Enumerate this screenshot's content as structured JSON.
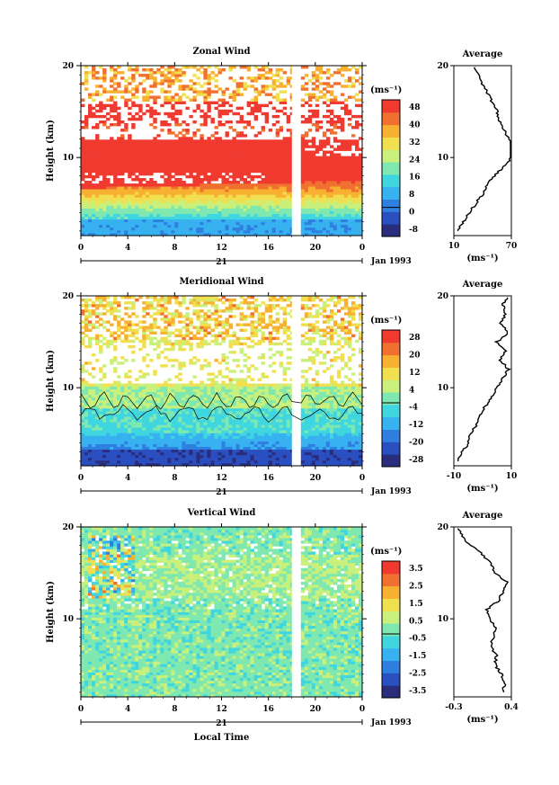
{
  "panels": [
    {
      "title": "Zonal Wind",
      "ylabel": "Height (km)",
      "yticks": [
        "20",
        "10"
      ],
      "xticks": [
        "0",
        "4",
        "8",
        "12",
        "16",
        "20",
        "0"
      ],
      "day_label": "21",
      "month_label": "Jan 1993",
      "unit_label": "(ms⁻¹)",
      "colorbar_labels": [
        "48",
        "40",
        "32",
        "24",
        "16",
        "8",
        "0",
        "-8"
      ],
      "avg_title": "Average",
      "avg_yticks": [
        "20",
        "10"
      ],
      "avg_xticks": [
        "10",
        "70"
      ],
      "avg_xunit": "(ms⁻¹)"
    },
    {
      "title": "Meridional Wind",
      "ylabel": "Height (km)",
      "yticks": [
        "20",
        "10"
      ],
      "xticks": [
        "0",
        "4",
        "8",
        "12",
        "16",
        "20",
        "0"
      ],
      "day_label": "21",
      "month_label": "Jan 1993",
      "unit_label": "(ms⁻¹)",
      "colorbar_labels": [
        "28",
        "20",
        "12",
        "4",
        "-4",
        "-12",
        "-20",
        "-28"
      ],
      "avg_title": "Average",
      "avg_yticks": [
        "20",
        "10"
      ],
      "avg_xticks": [
        "-10",
        "10"
      ],
      "avg_xunit": "(ms⁻¹)"
    },
    {
      "title": "Vertical Wind",
      "ylabel": "Height (km)",
      "yticks": [
        "20",
        "10"
      ],
      "xticks": [
        "0",
        "4",
        "8",
        "12",
        "16",
        "20",
        "0"
      ],
      "day_label": "21",
      "month_label": "Jan 1993",
      "unit_label": "(ms⁻¹)",
      "colorbar_labels": [
        "3.5",
        "2.5",
        "1.5",
        "0.5",
        "-0.5",
        "-1.5",
        "-2.5",
        "-3.5"
      ],
      "avg_title": "Average",
      "avg_yticks": [
        "20",
        "10"
      ],
      "avg_xticks": [
        "-0.3",
        "0.4"
      ],
      "avg_xunit": "(ms⁻¹)"
    }
  ],
  "xlabel": "Local Time",
  "colors": {
    "scale": [
      "#2a2d7c",
      "#2a4fc0",
      "#2f7fe0",
      "#37b1f0",
      "#3fd6e0",
      "#7fe8b0",
      "#c8f07a",
      "#f0e050",
      "#f8b030",
      "#f07030",
      "#f03a30"
    ]
  },
  "chart_data": [
    {
      "type": "heatmap",
      "title": "Zonal Wind",
      "xlabel": "Local Time",
      "ylabel": "Height (km)",
      "xlim": [
        0,
        24
      ],
      "ylim": [
        1.5,
        20
      ],
      "colorbar": [
        -8,
        0,
        8,
        16,
        24,
        32,
        40,
        48
      ],
      "average_profile": {
        "xlim": [
          10,
          70
        ],
        "height": [
          2,
          3,
          4,
          5,
          6,
          7,
          8,
          9,
          10,
          11,
          12,
          13,
          14,
          15,
          16,
          17,
          18,
          19,
          20
        ],
        "value": [
          14,
          20,
          26,
          33,
          40,
          45,
          52,
          62,
          70,
          70,
          68,
          62,
          58,
          55,
          50,
          45,
          40,
          35,
          30
        ]
      }
    },
    {
      "type": "heatmap",
      "title": "Meridional Wind",
      "xlabel": "Local Time",
      "ylabel": "Height (km)",
      "xlim": [
        0,
        24
      ],
      "ylim": [
        1.5,
        20
      ],
      "colorbar": [
        -28,
        -20,
        -12,
        -4,
        4,
        12,
        20,
        28
      ],
      "average_profile": {
        "xlim": [
          -10,
          10
        ],
        "height": [
          2,
          3,
          4,
          5,
          6,
          7,
          8,
          9,
          10,
          11,
          12,
          13,
          14,
          15,
          16,
          17,
          18,
          19,
          20
        ],
        "value": [
          -9,
          -7,
          -5,
          -4,
          -2,
          -1,
          1,
          3,
          5,
          7,
          9,
          6,
          8,
          5,
          9,
          6,
          8,
          7,
          9
        ]
      }
    },
    {
      "type": "heatmap",
      "title": "Vertical Wind",
      "xlabel": "Local Time",
      "ylabel": "Height (km)",
      "xlim": [
        0,
        24
      ],
      "ylim": [
        1.5,
        20
      ],
      "colorbar": [
        -3.5,
        -2.5,
        -1.5,
        -0.5,
        0.5,
        1.5,
        2.5,
        3.5
      ],
      "average_profile": {
        "xlim": [
          -0.3,
          0.4
        ],
        "height": [
          2,
          3,
          4,
          5,
          6,
          7,
          8,
          9,
          10,
          11,
          12,
          13,
          14,
          15,
          16,
          17,
          18,
          19,
          20
        ],
        "value": [
          0.3,
          0.32,
          0.28,
          0.2,
          0.22,
          0.15,
          0.18,
          0.2,
          0.15,
          0.1,
          0.25,
          0.3,
          0.35,
          0.2,
          0.15,
          0.05,
          -0.1,
          -0.2,
          -0.25
        ]
      }
    }
  ]
}
